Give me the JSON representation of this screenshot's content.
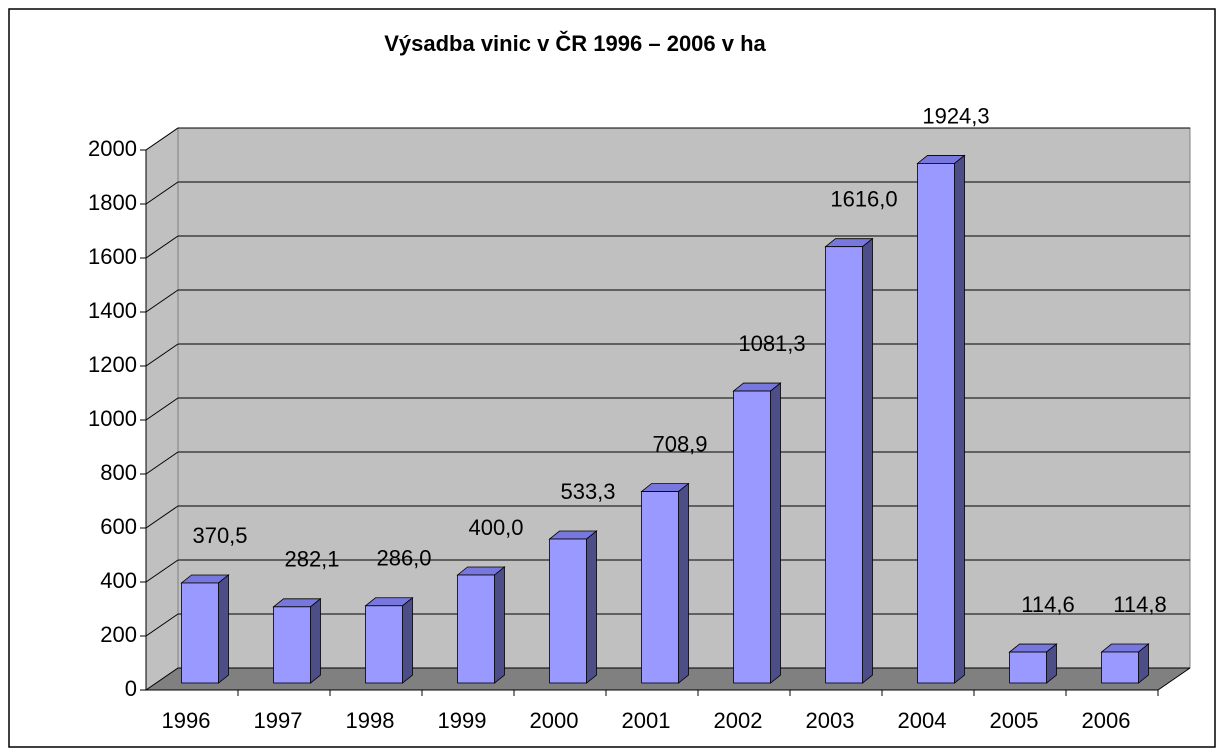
{
  "chart_data": {
    "type": "bar",
    "title": "Výsadba vinic v ČR 1996 – 2006 v ha",
    "categories": [
      "1996",
      "1997",
      "1998",
      "1999",
      "2000",
      "2001",
      "2002",
      "2003",
      "2004",
      "2005",
      "2006"
    ],
    "values": [
      370.5,
      282.1,
      286.0,
      400.0,
      533.3,
      708.9,
      1081.3,
      1616.0,
      1924.3,
      114.6,
      114.8
    ],
    "value_labels": [
      "370,5",
      "282,1",
      "286,0",
      "400,0",
      "533,3",
      "708,9",
      "1081,3",
      "1616,0",
      "1924,3",
      "114,6",
      "114,8"
    ],
    "color": "#9999ff",
    "ylim": [
      0,
      2000
    ],
    "yticks": [
      0,
      200,
      400,
      600,
      800,
      1000,
      1200,
      1400,
      1600,
      1800,
      2000
    ],
    "grid": true
  }
}
